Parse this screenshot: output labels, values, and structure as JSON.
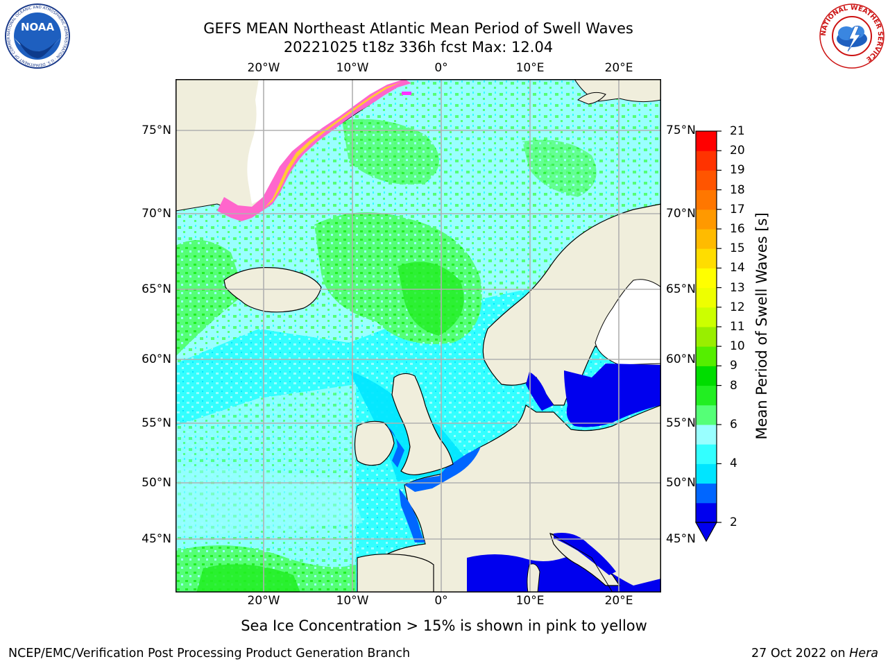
{
  "title": {
    "line1": "GEFS MEAN Northeast Atlantic Mean Period of Swell Waves",
    "line2": "20221025 t18z 336h fcst   Max: 12.04"
  },
  "axes": {
    "lon_ticks": [
      "20°W",
      "10°W",
      "0°",
      "10°E",
      "20°E"
    ],
    "lat_ticks": [
      "75°N",
      "70°N",
      "65°N",
      "60°N",
      "55°N",
      "50°N",
      "45°N"
    ]
  },
  "colorbar": {
    "label": "Mean Period of Swell Waves [s]",
    "ticks": [
      "21",
      "20",
      "19",
      "18",
      "17",
      "16",
      "15",
      "14",
      "13",
      "12",
      "11",
      "10",
      "9",
      "8",
      "6",
      "4",
      "2"
    ],
    "colors": [
      "#0000ee",
      "#0066ff",
      "#00e5ff",
      "#33ffff",
      "#99ffff",
      "#55ff77",
      "#22ee22",
      "#00dd00",
      "#55ee00",
      "#99ee00",
      "#ccff00",
      "#eeff00",
      "#ffff00",
      "#ffdd00",
      "#ffbb00",
      "#ff9900",
      "#ff7700",
      "#ff5500",
      "#ff3300",
      "#ff0000"
    ]
  },
  "subtitle": "Sea Ice Concentration > 15% is shown in pink to yellow",
  "footer": {
    "left": "NCEP/EMC/Verification Post Processing Product Generation Branch",
    "right_prefix": "27 Oct 2022 on ",
    "right_host": "Hera"
  },
  "logos": {
    "noaa_text": "NOAA",
    "noaa_ring": "NATIONAL OCEANIC AND ATMOSPHERIC ADMINISTRATION · U.S. DEPARTMENT OF COMMERCE",
    "nws_ring": "NATIONAL WEATHER SERVICE"
  }
}
